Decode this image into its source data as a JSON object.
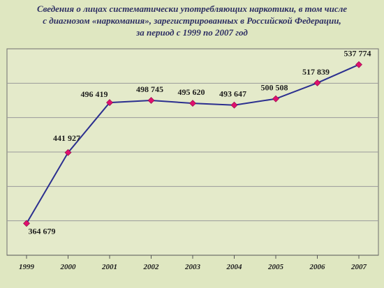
{
  "chart_data": {
    "type": "line",
    "title_lines": [
      "Сведения о лицах систематически употребляющих  наркотики, в том числе",
      "с диагнозом «наркомания», зарегистрированных в Российской Федерации,",
      "за период с 1999  по 2007 год"
    ],
    "categories": [
      "1999",
      "2000",
      "2001",
      "2002",
      "2003",
      "2004",
      "2005",
      "2006",
      "2007"
    ],
    "values": [
      364679,
      441927,
      496419,
      498745,
      495620,
      493647,
      500508,
      517839,
      537774
    ],
    "value_labels": [
      "364 679",
      "441 927",
      "496 419",
      "498 745",
      "495 620",
      "493 647",
      "500 508",
      "517 839",
      "537 774"
    ],
    "ylim": [
      330000,
      555000
    ],
    "grid": true,
    "legend": "none",
    "line_color": "#2b2f8f",
    "marker_color": "#e0106e",
    "grid_color": "#9a9a9a"
  }
}
